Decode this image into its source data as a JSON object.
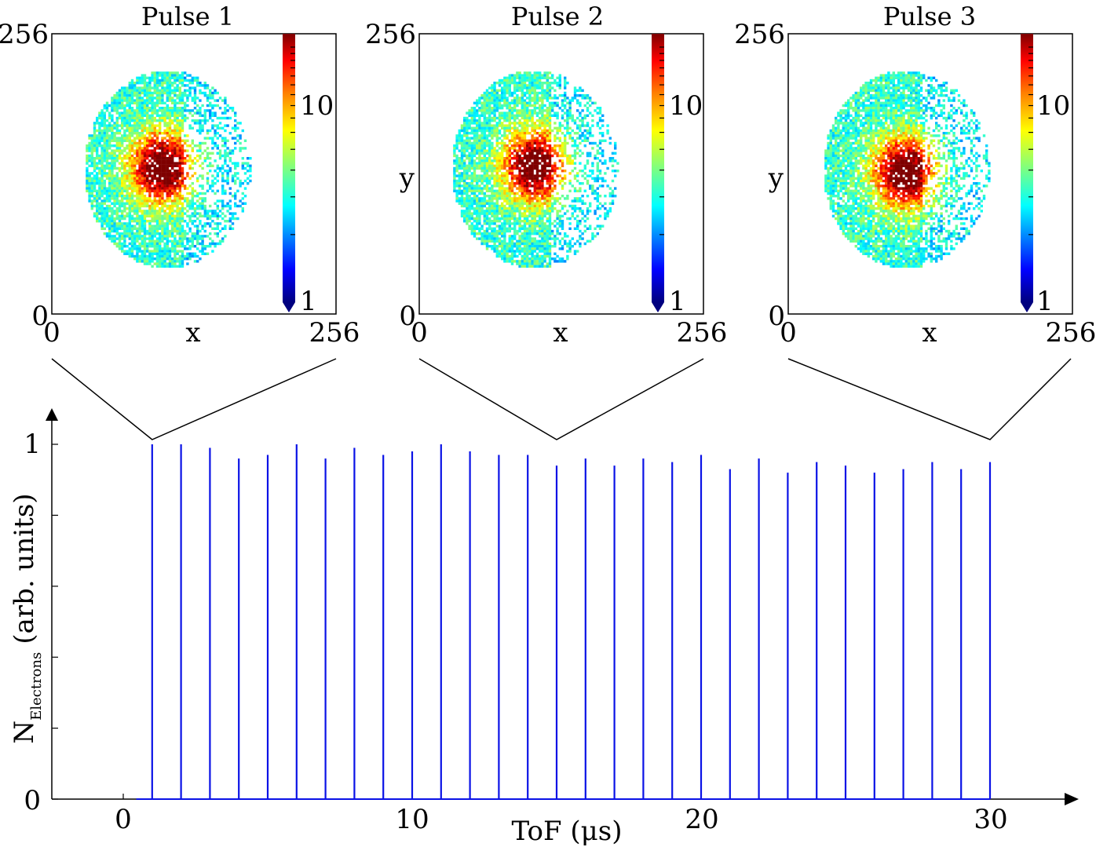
{
  "colors": {
    "series": "#0a12e6",
    "axis": "#000000",
    "colormap": [
      "#00007f",
      "#0000ff",
      "#007fff",
      "#00ffff",
      "#7fff7f",
      "#ffff00",
      "#ff7f00",
      "#ff0000",
      "#7f0000"
    ]
  },
  "panels": [
    {
      "title": "Pulse 1",
      "xlabel": "x",
      "ylabel": "",
      "x_tick_labels": [
        "0",
        "256"
      ],
      "y_tick_labels": [
        "0",
        "256"
      ],
      "colorbar_labels": [
        "1",
        "10"
      ]
    },
    {
      "title": "Pulse 2",
      "xlabel": "x",
      "ylabel": "y",
      "x_tick_labels": [
        "0",
        "256"
      ],
      "y_tick_labels": [
        "0",
        "256"
      ],
      "colorbar_labels": [
        "1",
        "10"
      ]
    },
    {
      "title": "Pulse 3",
      "xlabel": "x",
      "ylabel": "y",
      "x_tick_labels": [
        "0",
        "256"
      ],
      "y_tick_labels": [
        "0",
        "256"
      ],
      "colorbar_labels": [
        "1",
        "10"
      ]
    }
  ],
  "chart_data": [
    {
      "type": "heatmap",
      "title": "Pulse 1",
      "xlabel": "x",
      "ylabel": "",
      "xlim": [
        0,
        256
      ],
      "ylim": [
        0,
        256
      ],
      "color_scale": "log",
      "color_range": [
        1,
        15
      ]
    },
    {
      "type": "heatmap",
      "title": "Pulse 2",
      "xlabel": "x",
      "ylabel": "y",
      "xlim": [
        0,
        256
      ],
      "ylim": [
        0,
        256
      ],
      "color_scale": "log",
      "color_range": [
        1,
        15
      ]
    },
    {
      "type": "heatmap",
      "title": "Pulse 3",
      "xlabel": "x",
      "ylabel": "y",
      "xlim": [
        0,
        256
      ],
      "ylim": [
        0,
        256
      ],
      "color_scale": "log",
      "color_range": [
        1,
        15
      ]
    },
    {
      "type": "line",
      "xlabel": "ToF (μs)",
      "ylabel_main": "N",
      "ylabel_sub": "Electrons",
      "ylabel_suffix": "(arb. units)",
      "x_tick_labels": [
        "0",
        "10",
        "20",
        "30"
      ],
      "x_ticks": [
        0,
        10,
        20,
        30
      ],
      "y_tick_labels": [
        "0",
        "1"
      ],
      "y_ticks": [
        0,
        1
      ],
      "y_minor_ticks": [
        0.2,
        0.4,
        0.6,
        0.8
      ],
      "xlim": [
        -2.5,
        33
      ],
      "ylim": [
        0,
        1.1
      ],
      "series": [
        {
          "pulse_times": [
            1,
            2,
            3,
            4,
            5,
            6,
            7,
            8,
            9,
            10,
            11,
            12,
            13,
            14,
            15,
            16,
            17,
            18,
            19,
            20,
            21,
            22,
            23,
            24,
            25,
            26,
            27,
            28,
            29,
            30
          ],
          "peak_values": [
            1.0,
            1.0,
            0.99,
            0.96,
            0.97,
            1.0,
            0.96,
            0.99,
            0.97,
            0.98,
            1.0,
            0.98,
            0.97,
            0.97,
            0.94,
            0.96,
            0.94,
            0.96,
            0.95,
            0.97,
            0.93,
            0.96,
            0.92,
            0.95,
            0.94,
            0.92,
            0.93,
            0.95,
            0.93,
            0.95
          ]
        }
      ],
      "zoom_links": [
        1,
        15,
        30
      ]
    }
  ]
}
